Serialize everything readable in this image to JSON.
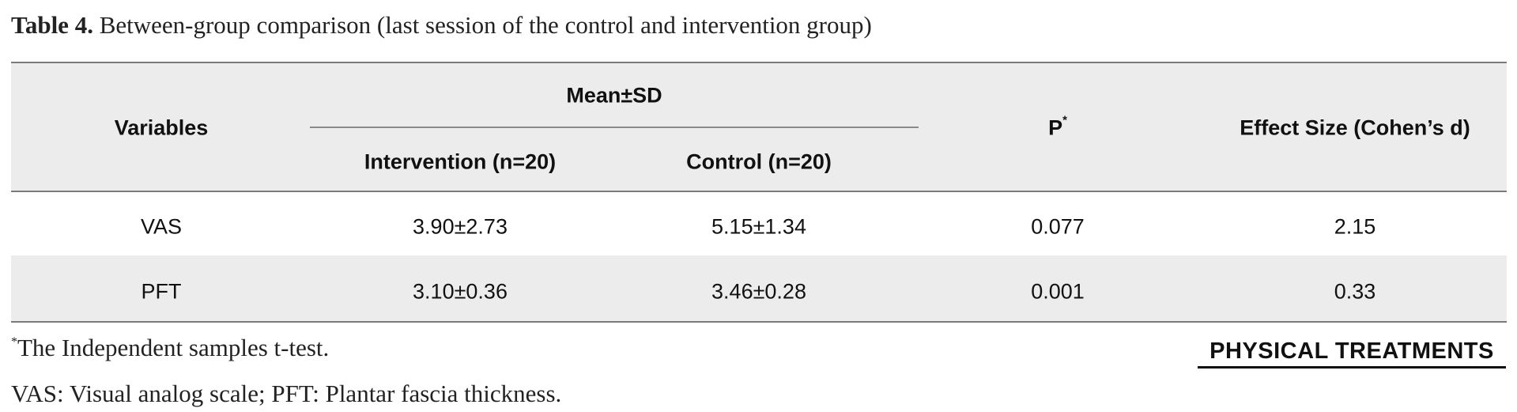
{
  "caption": {
    "label": "Table 4.",
    "text": " Between-group comparison (last session of the control and intervention group)"
  },
  "table": {
    "headers": {
      "variables": "Variables",
      "mean_sd": "Mean±SD",
      "intervention": "Intervention (n=20)",
      "control": "Control (n=20)",
      "p": "P",
      "p_mark": "*",
      "effect": "Effect Size (Cohen’s d)"
    },
    "rows": [
      {
        "variable": "VAS",
        "intervention": "3.90±2.73",
        "control": "5.15±1.34",
        "p": "0.077",
        "effect": "2.15"
      },
      {
        "variable": "PFT",
        "intervention": "3.10±0.36",
        "control": "3.46±0.28",
        "p": "0.001",
        "effect": "0.33"
      }
    ]
  },
  "footnotes": {
    "mark": "*",
    "line1": "The Independent samples t-test.",
    "line2": "VAS: Visual analog scale; PFT: Plantar fascia thickness."
  },
  "logo": {
    "text": "PHYSICAL TREATMENTS"
  }
}
